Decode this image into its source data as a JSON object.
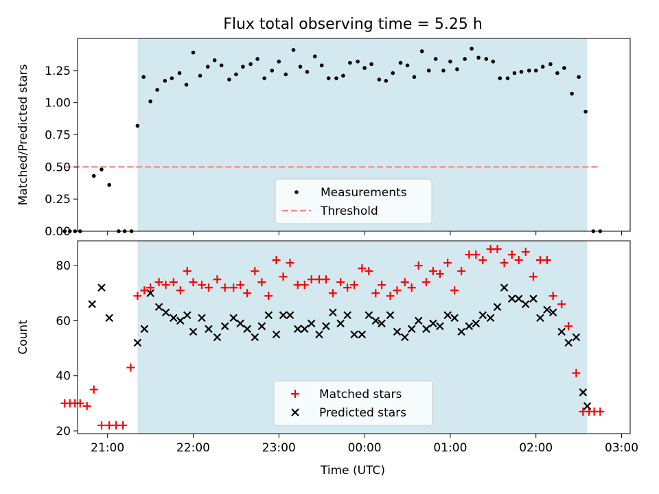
{
  "chart_data": [
    {
      "type": "scatter",
      "title": "Flux total observing time = 5.25 h",
      "ylabel": "Matched/Predicted stars",
      "xlabel": "",
      "x_unit": "hours since 20:00 UTC (chart runs past midnight)",
      "xlim": [
        0.65,
        7.1
      ],
      "ylim": [
        0.0,
        1.5
      ],
      "yticks": [
        0.0,
        0.25,
        0.5,
        0.75,
        1.0,
        1.25
      ],
      "ytick_labels": [
        "0.00",
        "0.25",
        "0.50",
        "0.75",
        "1.00",
        "1.25"
      ],
      "xticks": [
        1,
        2,
        3,
        4,
        5,
        6,
        7
      ],
      "shaded_span": [
        1.35,
        6.6
      ],
      "shade_color": "#d3e9ef",
      "legend_position": "lower center",
      "series": [
        {
          "name": "Measurements",
          "color": "#000000",
          "marker": "dot",
          "x": [
            0.5,
            0.56,
            0.62,
            0.68,
            0.84,
            0.93,
            1.02,
            1.13,
            1.2,
            1.28,
            1.35,
            1.42,
            1.5,
            1.58,
            1.67,
            1.75,
            1.84,
            1.92,
            2.0,
            2.08,
            2.17,
            2.25,
            2.33,
            2.42,
            2.5,
            2.58,
            2.67,
            2.75,
            2.83,
            2.92,
            3.0,
            3.08,
            3.17,
            3.25,
            3.33,
            3.42,
            3.5,
            3.58,
            3.67,
            3.75,
            3.83,
            3.92,
            4.0,
            4.08,
            4.17,
            4.25,
            4.33,
            4.42,
            4.5,
            4.58,
            4.67,
            4.75,
            4.83,
            4.92,
            5.0,
            5.08,
            5.17,
            5.25,
            5.33,
            5.42,
            5.5,
            5.58,
            5.67,
            5.75,
            5.83,
            5.92,
            6.0,
            6.08,
            6.17,
            6.25,
            6.33,
            6.42,
            6.5,
            6.58,
            6.67,
            6.75
          ],
          "y": [
            0.0,
            0.0,
            0.0,
            0.0,
            0.43,
            0.48,
            0.36,
            0.0,
            0.0,
            0.0,
            0.82,
            1.2,
            1.01,
            1.1,
            1.17,
            1.19,
            1.23,
            1.14,
            1.39,
            1.21,
            1.28,
            1.33,
            1.29,
            1.18,
            1.22,
            1.28,
            1.3,
            1.34,
            1.19,
            1.25,
            1.32,
            1.22,
            1.41,
            1.28,
            1.24,
            1.36,
            1.29,
            1.19,
            1.19,
            1.21,
            1.31,
            1.32,
            1.27,
            1.3,
            1.18,
            1.17,
            1.23,
            1.31,
            1.29,
            1.2,
            1.4,
            1.25,
            1.34,
            1.25,
            1.32,
            1.26,
            1.34,
            1.42,
            1.35,
            1.34,
            1.32,
            1.19,
            1.19,
            1.23,
            1.24,
            1.25,
            1.25,
            1.28,
            1.3,
            1.23,
            1.27,
            1.07,
            1.2,
            0.93,
            0.0,
            0.0
          ]
        },
        {
          "name": "Threshold",
          "color": "#ff7f7f",
          "marker": "dashed-line",
          "x": [
            0.5,
            6.75
          ],
          "y": [
            0.5,
            0.5
          ]
        }
      ]
    },
    {
      "type": "scatter",
      "title": "",
      "ylabel": "Count",
      "xlabel": "Time (UTC)",
      "x_unit": "hours since 20:00 UTC (chart runs past midnight)",
      "xlim": [
        0.65,
        7.1
      ],
      "ylim": [
        19,
        89
      ],
      "yticks": [
        20,
        40,
        60,
        80
      ],
      "ytick_labels": [
        "20",
        "40",
        "60",
        "80"
      ],
      "xticks": [
        1,
        2,
        3,
        4,
        5,
        6,
        7
      ],
      "xtick_labels": [
        "21:00",
        "22:00",
        "23:00",
        "00:00",
        "01:00",
        "02:00",
        "03:00"
      ],
      "shaded_span": [
        1.35,
        6.6
      ],
      "shade_color": "#d3e9ef",
      "legend_position": "lower center",
      "series": [
        {
          "name": "Matched stars",
          "color": "#ff0000",
          "marker": "plus",
          "x": [
            0.5,
            0.56,
            0.62,
            0.68,
            0.76,
            0.84,
            0.93,
            1.02,
            1.1,
            1.18,
            1.27,
            1.35,
            1.43,
            1.5,
            1.6,
            1.68,
            1.77,
            1.85,
            1.93,
            2.0,
            2.1,
            2.18,
            2.28,
            2.37,
            2.47,
            2.55,
            2.63,
            2.72,
            2.8,
            2.88,
            2.97,
            3.05,
            3.13,
            3.22,
            3.3,
            3.38,
            3.47,
            3.55,
            3.63,
            3.72,
            3.8,
            3.88,
            3.97,
            4.05,
            4.13,
            4.2,
            4.3,
            4.38,
            4.47,
            4.55,
            4.63,
            4.72,
            4.8,
            4.88,
            4.97,
            5.05,
            5.13,
            5.22,
            5.3,
            5.38,
            5.47,
            5.55,
            5.63,
            5.72,
            5.8,
            5.88,
            5.97,
            6.05,
            6.13,
            6.2,
            6.3,
            6.38,
            6.47,
            6.55,
            6.62,
            6.68,
            6.75
          ],
          "y": [
            30,
            30,
            30,
            30,
            29,
            35,
            22,
            22,
            22,
            22,
            43,
            69,
            71,
            72,
            74,
            73,
            74,
            71,
            78,
            74,
            73,
            72,
            75,
            72,
            72,
            73,
            70,
            78,
            74,
            69,
            82,
            76,
            81,
            73,
            73,
            75,
            75,
            75,
            70,
            74,
            72,
            73,
            79,
            78,
            70,
            73,
            69,
            71,
            74,
            72,
            80,
            74,
            78,
            77,
            81,
            71,
            78,
            84,
            84,
            82,
            86,
            86,
            81,
            84,
            82,
            85,
            76,
            82,
            82,
            69,
            66,
            58,
            41,
            27,
            27,
            27,
            27
          ]
        },
        {
          "name": "Predicted stars",
          "color": "#000000",
          "marker": "x",
          "x": [
            0.82,
            0.93,
            1.02,
            1.35,
            1.43,
            1.5,
            1.6,
            1.68,
            1.77,
            1.85,
            1.93,
            2.0,
            2.1,
            2.18,
            2.28,
            2.37,
            2.47,
            2.55,
            2.63,
            2.72,
            2.8,
            2.88,
            2.97,
            3.05,
            3.13,
            3.22,
            3.3,
            3.38,
            3.47,
            3.55,
            3.63,
            3.72,
            3.8,
            3.88,
            3.97,
            4.05,
            4.13,
            4.2,
            4.3,
            4.38,
            4.47,
            4.55,
            4.63,
            4.72,
            4.8,
            4.88,
            4.97,
            5.05,
            5.13,
            5.22,
            5.3,
            5.38,
            5.47,
            5.55,
            5.63,
            5.72,
            5.8,
            5.88,
            5.97,
            6.05,
            6.13,
            6.2,
            6.3,
            6.38,
            6.47,
            6.55,
            6.6
          ],
          "y": [
            66,
            72,
            61,
            52,
            57,
            70,
            65,
            63,
            61,
            60,
            62,
            56,
            61,
            57,
            54,
            58,
            61,
            59,
            57,
            54,
            58,
            62,
            55,
            62,
            62,
            57,
            57,
            59,
            55,
            58,
            63,
            59,
            62,
            55,
            55,
            62,
            60,
            59,
            62,
            56,
            54,
            57,
            60,
            57,
            59,
            58,
            62,
            61,
            56,
            58,
            59,
            62,
            61,
            65,
            72,
            68,
            68,
            66,
            68,
            61,
            64,
            63,
            56,
            52,
            54,
            34,
            29
          ]
        }
      ]
    }
  ]
}
